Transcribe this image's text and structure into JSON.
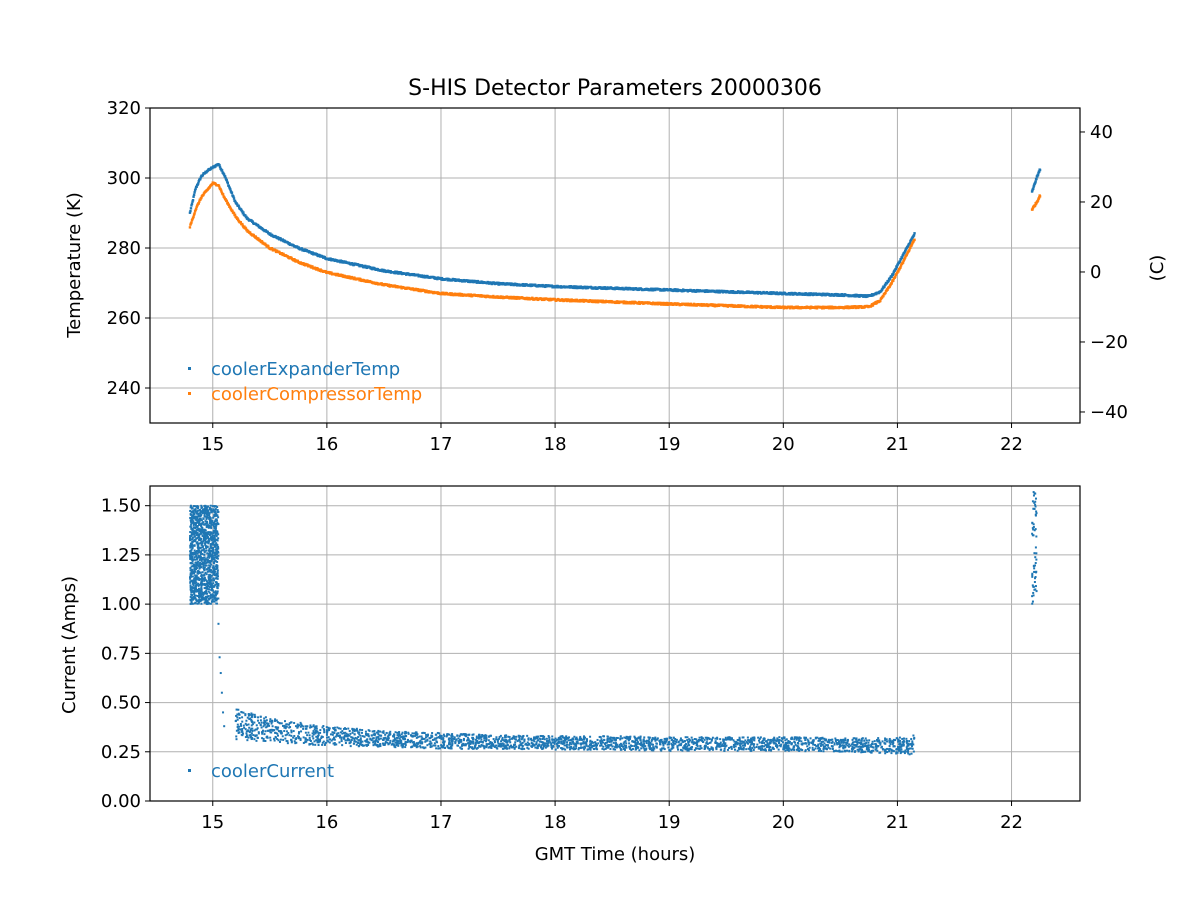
{
  "title": "S-HIS Detector Parameters 20000306",
  "colors": {
    "expander": "#1f77b4",
    "compressor": "#ff7f0e",
    "current": "#1f77b4",
    "grid": "#b0b0b0"
  },
  "chart_data": [
    {
      "type": "scatter",
      "name": "temperature",
      "title": "S-HIS Detector Parameters 20000306",
      "xlabel": "",
      "ylabel": "Temperature (K)",
      "ylabel_right": "(C)",
      "xlim": [
        14.45,
        22.6
      ],
      "ylim": [
        230,
        320
      ],
      "ylim_right": [
        -43.15,
        46.85
      ],
      "x_ticks": [
        15,
        16,
        17,
        18,
        19,
        20,
        21,
        22
      ],
      "y_ticks": [
        240,
        260,
        280,
        300,
        320
      ],
      "y_ticks_right": [
        -40,
        -20,
        0,
        20,
        40
      ],
      "grid": true,
      "legend_position": "lower-left",
      "series": [
        {
          "name": "coolerExpanderTemp",
          "color_key": "expander",
          "segments": [
            {
              "x": [
                14.8,
                14.85,
                14.9,
                14.95,
                15.0,
                15.05,
                15.1,
                15.2,
                15.3,
                15.5,
                15.75,
                16.0,
                16.5,
                17.0,
                17.5,
                18.0,
                18.5,
                19.0,
                19.5,
                20.0,
                20.5,
                20.75,
                20.85,
                20.95,
                21.05,
                21.15
              ],
              "y": [
                290,
                297,
                300.5,
                302,
                303,
                304,
                301,
                293,
                288.5,
                284,
                280,
                277,
                273.5,
                271.2,
                269.8,
                269,
                268.5,
                268,
                267.5,
                267,
                266.6,
                266.2,
                267.5,
                272,
                278,
                284
              ]
            },
            {
              "x": [
                22.18,
                22.2,
                22.22,
                22.25
              ],
              "y": [
                296,
                298,
                300,
                302.5
              ]
            }
          ]
        },
        {
          "name": "coolerCompressorTemp",
          "color_key": "compressor",
          "segments": [
            {
              "x": [
                14.8,
                14.85,
                14.9,
                14.95,
                15.0,
                15.05,
                15.1,
                15.2,
                15.3,
                15.5,
                15.75,
                16.0,
                16.5,
                17.0,
                17.5,
                18.0,
                18.5,
                19.0,
                19.5,
                20.0,
                20.5,
                20.75,
                20.85,
                20.95,
                21.05,
                21.15
              ],
              "y": [
                286,
                291,
                294.5,
                296.5,
                298.5,
                298,
                294.5,
                289,
                285,
                280,
                276,
                273,
                269.5,
                267,
                266,
                265.2,
                264.6,
                264,
                263.5,
                263,
                263,
                263.2,
                265,
                270,
                276,
                282.5
              ]
            },
            {
              "x": [
                22.18,
                22.2,
                22.22,
                22.25
              ],
              "y": [
                291,
                292,
                293,
                295
              ]
            }
          ]
        }
      ]
    },
    {
      "type": "scatter",
      "name": "current",
      "title": "",
      "xlabel": "GMT Time (hours)",
      "ylabel": "Current (Amps)",
      "xlim": [
        14.45,
        22.6
      ],
      "ylim": [
        0,
        1.6
      ],
      "x_ticks": [
        15,
        16,
        17,
        18,
        19,
        20,
        21,
        22
      ],
      "y_ticks": [
        0.0,
        0.25,
        0.5,
        0.75,
        1.0,
        1.25,
        1.5
      ],
      "grid": true,
      "legend_position": "lower-left",
      "series": [
        {
          "name": "coolerCurrent",
          "color_key": "current",
          "bands": [
            {
              "x_range": [
                14.8,
                15.05
              ],
              "y_range": [
                1.0,
                1.5
              ],
              "count": 1200
            },
            {
              "x_range": [
                22.18,
                22.22
              ],
              "y_range": [
                1.0,
                1.57
              ],
              "count": 60
            }
          ],
          "trend": {
            "x": [
              15.2,
              15.5,
              16.0,
              16.5,
              17.0,
              17.5,
              18.0,
              18.5,
              19.0,
              19.5,
              20.0,
              20.5,
              21.0,
              21.15
            ],
            "y": [
              0.39,
              0.36,
              0.33,
              0.315,
              0.305,
              0.3,
              0.295,
              0.295,
              0.29,
              0.29,
              0.29,
              0.285,
              0.28,
              0.285
            ],
            "spread": [
              0.08,
              0.06,
              0.05,
              0.04,
              0.04,
              0.035,
              0.035,
              0.035,
              0.035,
              0.035,
              0.035,
              0.035,
              0.04,
              0.05
            ]
          },
          "transition": {
            "x": [
              15.05,
              15.06,
              15.07,
              15.08,
              15.09,
              15.1
            ],
            "y": [
              0.9,
              0.73,
              0.65,
              0.55,
              0.45,
              0.38
            ]
          }
        }
      ]
    }
  ]
}
